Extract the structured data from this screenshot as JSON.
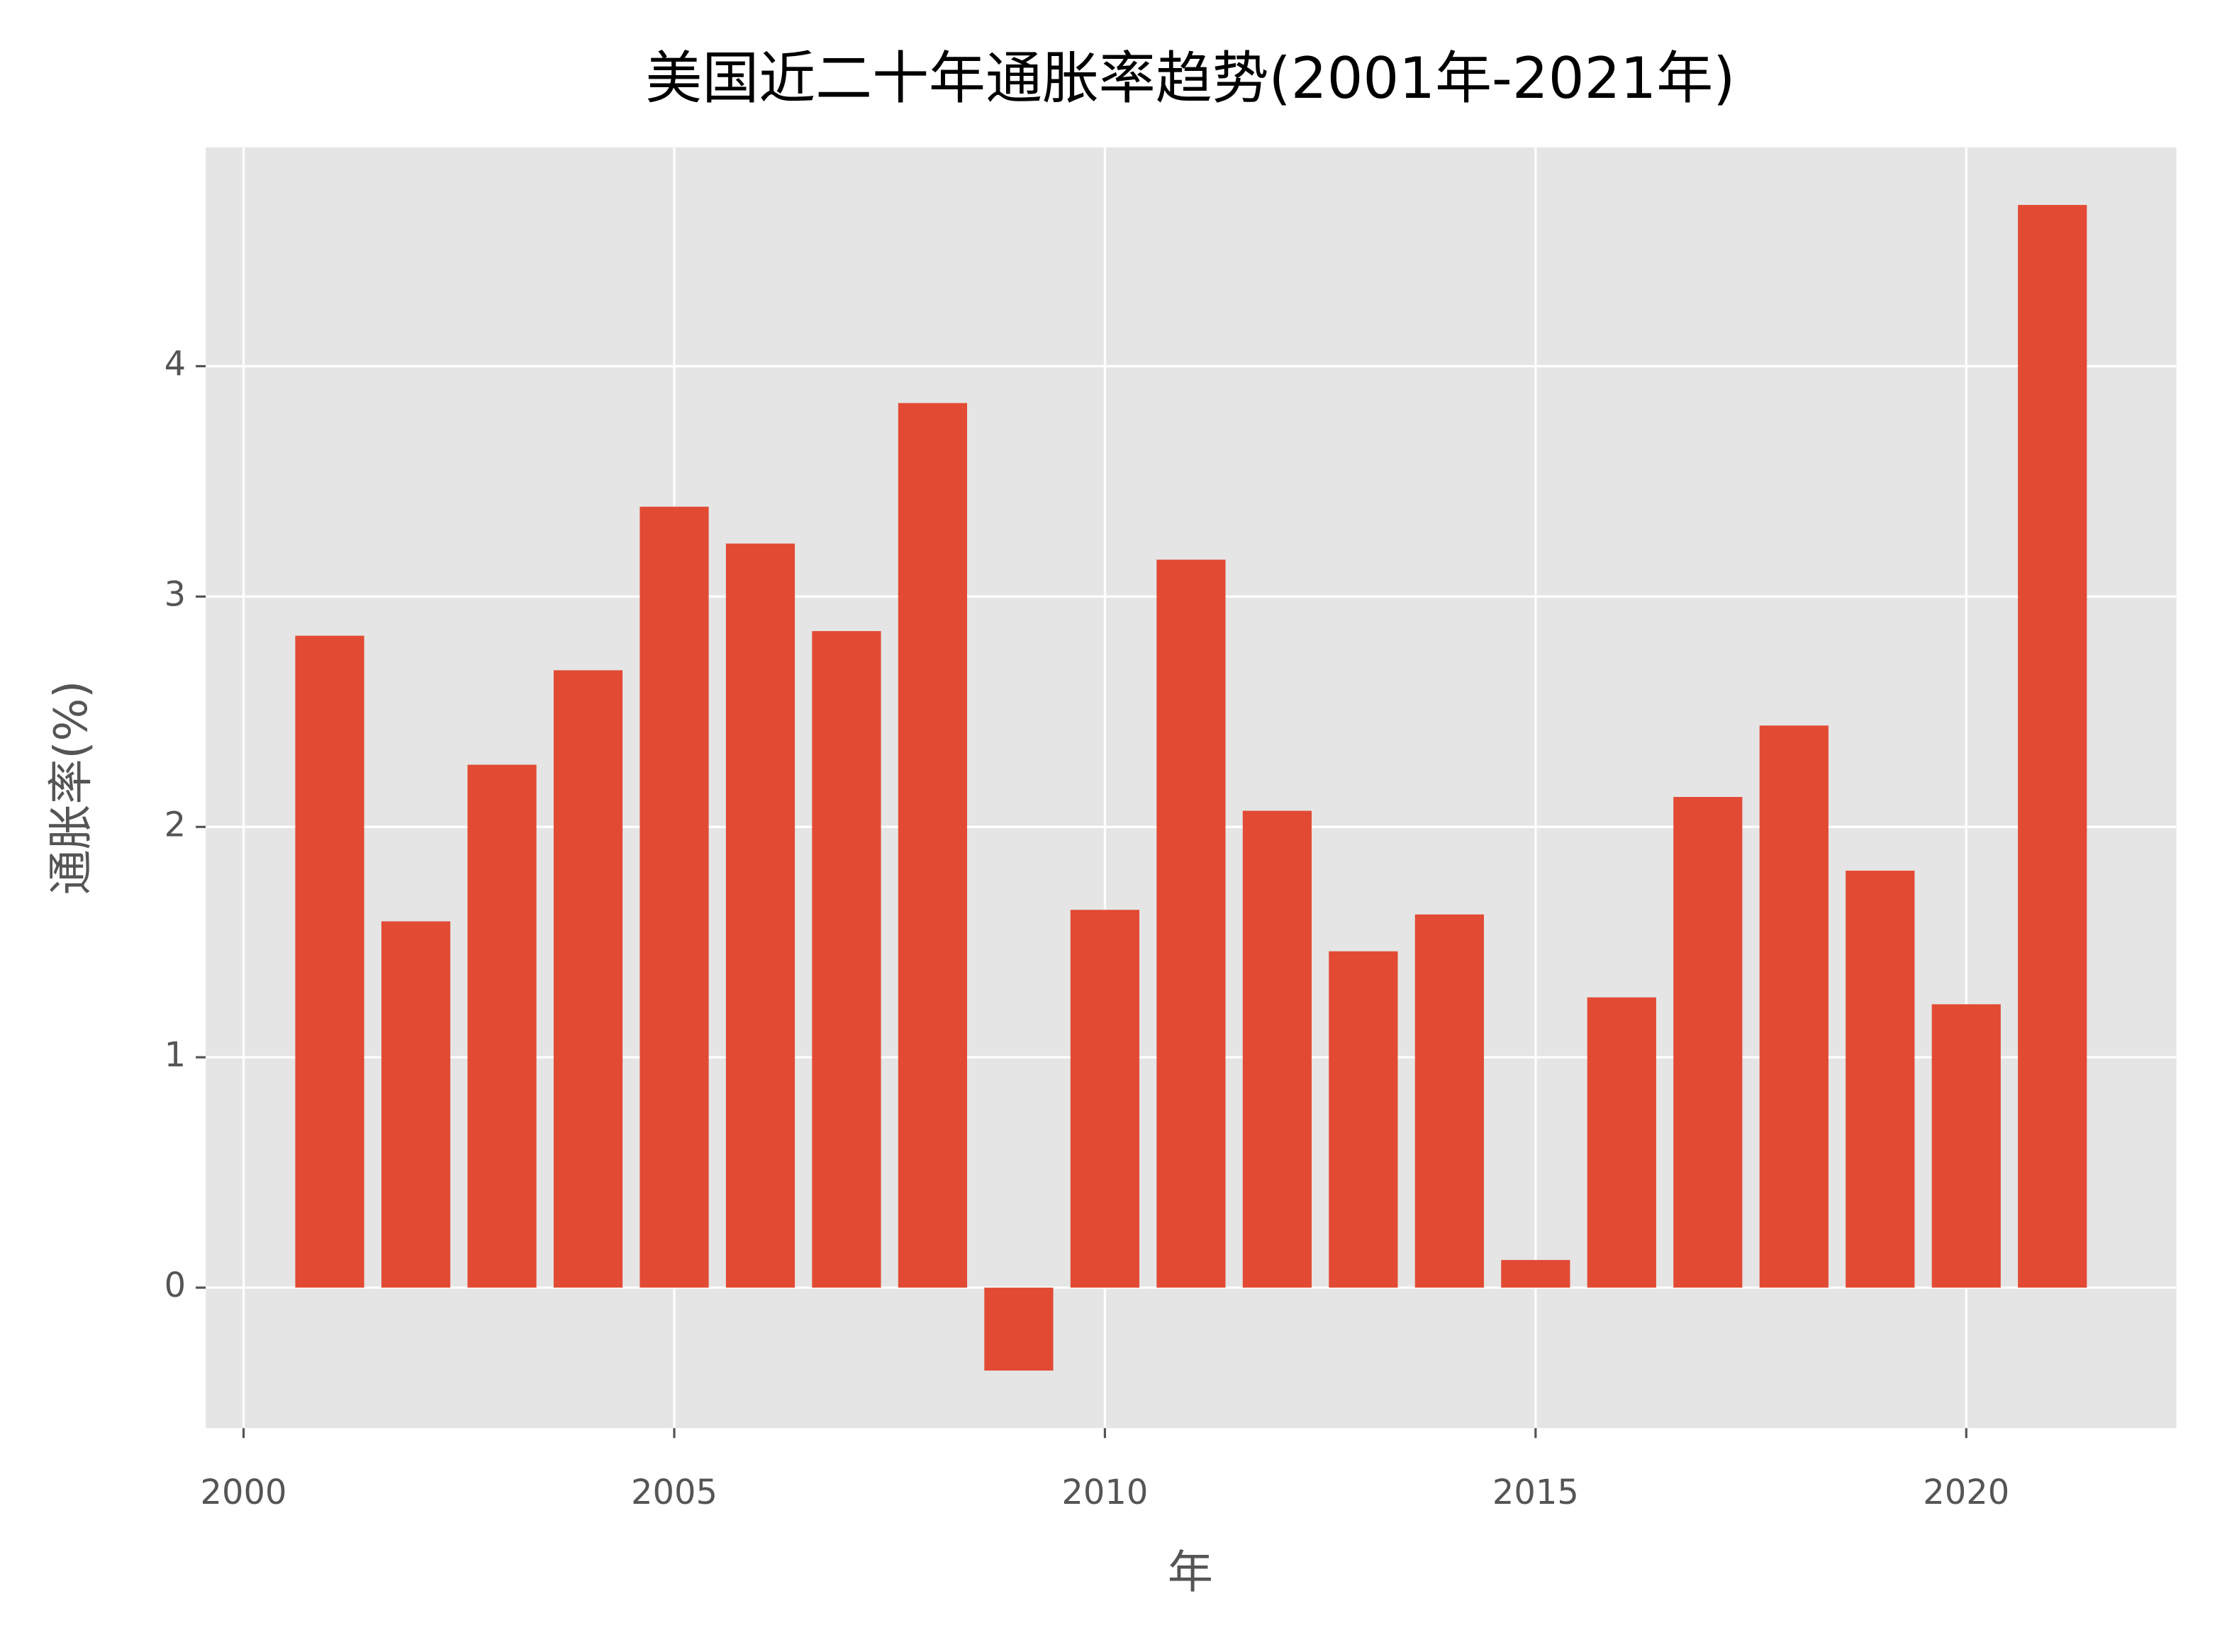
{
  "chart_data": {
    "type": "bar",
    "title": "美国近二十年通胀率趋势(2001年-2021年)",
    "xlabel": "年",
    "ylabel": "通胀率(%)",
    "x": [
      2001,
      2002,
      2003,
      2004,
      2005,
      2006,
      2007,
      2008,
      2009,
      2010,
      2011,
      2012,
      2013,
      2014,
      2015,
      2016,
      2017,
      2018,
      2019,
      2020,
      2021
    ],
    "values": [
      2.83,
      1.59,
      2.27,
      2.68,
      3.39,
      3.23,
      2.85,
      3.84,
      -0.36,
      1.64,
      3.16,
      2.07,
      1.46,
      1.62,
      0.12,
      1.26,
      2.13,
      2.44,
      1.81,
      1.23,
      4.7
    ],
    "color": "#e24a33",
    "xlim": [
      1999.56,
      2022.44
    ],
    "xticks": [
      2000,
      2005,
      2010,
      2015,
      2020
    ],
    "ylim": [
      -0.61,
      4.95
    ],
    "yticks": [
      0,
      1,
      2,
      3,
      4
    ],
    "grid": true
  }
}
